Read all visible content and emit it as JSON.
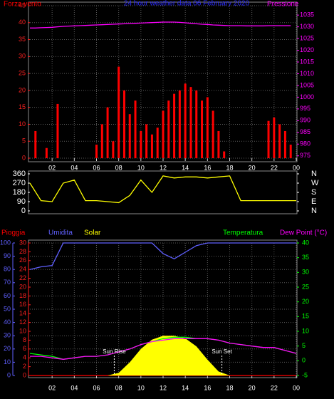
{
  "chart_data": [
    {
      "type": "bar",
      "title": "24 hour weather data  06 February 2020",
      "x": [
        0,
        0.5,
        1,
        1.5,
        2,
        2.5,
        3,
        3.5,
        4,
        4.5,
        5,
        5.5,
        6,
        6.5,
        7,
        7.5,
        8,
        8.5,
        9,
        9.5,
        10,
        10.5,
        11,
        11.5,
        12,
        12.5,
        13,
        13.5,
        14,
        14.5,
        15,
        15.5,
        16,
        16.5,
        17,
        17.5,
        18,
        18.5,
        19,
        19.5,
        20,
        20.5,
        21,
        21.5,
        22,
        22.5,
        23,
        23.5
      ],
      "xlim": [
        0,
        24
      ],
      "xticks": [
        {
          "value": 2,
          "label": "02"
        },
        {
          "value": 4,
          "label": "04"
        },
        {
          "value": 6,
          "label": "06"
        },
        {
          "value": 8,
          "label": "08"
        },
        {
          "value": 10,
          "label": "10"
        },
        12,
        14,
        16,
        18,
        20,
        22,
        {
          "value": 24,
          "label": "00"
        }
      ],
      "ylim": [
        0,
        45
      ],
      "yticks": [
        0,
        5,
        10,
        15,
        20,
        25,
        30,
        35,
        40,
        45
      ],
      "y2lim": [
        974,
        1039
      ],
      "y2ticks": [
        975,
        980,
        985,
        990,
        995,
        1000,
        1005,
        1010,
        1015,
        1020,
        1025,
        1030,
        1035
      ],
      "ycolor": "#ff2020",
      "y2color": "#ff00ff",
      "grid": true,
      "series": [
        {
          "name": "Forza vento",
          "color": "#ff0000",
          "type": "bar",
          "values": [
            0,
            8,
            0,
            3,
            0,
            16,
            0,
            0,
            0,
            0,
            0,
            0,
            4,
            10,
            15,
            5,
            27,
            20,
            13,
            17,
            8,
            10,
            7,
            9,
            14,
            17,
            19,
            20,
            22,
            21,
            20,
            17,
            18,
            14,
            8,
            2,
            0,
            0,
            0,
            0,
            0,
            0,
            0,
            11,
            12,
            10,
            8,
            4
          ]
        },
        {
          "name": "Pressione",
          "color": "#ff00ff",
          "type": "line",
          "axis": "y2",
          "values": [
            1029.5,
            1029.5,
            1029.6,
            1029.7,
            1029.8,
            1030,
            1030.2,
            1030.3,
            1030.4,
            1030.5,
            1030.6,
            1030.7,
            1030.8,
            1030.9,
            1031,
            1031.1,
            1031.2,
            1031.3,
            1031.4,
            1031.5,
            1031.6,
            1031.7,
            1031.8,
            1031.9,
            1032,
            1032,
            1032,
            1031.9,
            1031.7,
            1031.5,
            1031.3,
            1031.1,
            1031,
            1030.8,
            1030.7,
            1030.6,
            1030.5,
            1030.5,
            1030.5,
            1030.4,
            1030.4,
            1030.4,
            1030.4,
            1030.5,
            1030.5,
            1030.5,
            1030.5,
            1030.5
          ]
        }
      ]
    },
    {
      "type": "line",
      "x": [
        0,
        1,
        2,
        3,
        4,
        5,
        6,
        7,
        8,
        9,
        10,
        11,
        12,
        13,
        14,
        15,
        16,
        17,
        18,
        19,
        20,
        21,
        22,
        23,
        24
      ],
      "xlim": [
        0,
        24
      ],
      "ylim": [
        0,
        360
      ],
      "yticks": [
        0,
        90,
        180,
        270,
        360
      ],
      "y2lim": [
        0,
        360
      ],
      "y2ticks": [
        {
          "value": 0,
          "label": "N"
        },
        {
          "value": 90,
          "label": "E"
        },
        {
          "value": 180,
          "label": "S"
        },
        {
          "value": 270,
          "label": "W"
        },
        {
          "value": 360,
          "label": "N"
        }
      ],
      "ycolor": "#ffffff",
      "y2color": "#ffffff",
      "grid": false,
      "series": [
        {
          "color": "#ffff00",
          "type": "line",
          "values": [
            270,
            100,
            90,
            270,
            300,
            100,
            100,
            90,
            80,
            150,
            300,
            180,
            340,
            320,
            330,
            330,
            320,
            330,
            340,
            100,
            100,
            100,
            100,
            100,
            100
          ]
        }
      ]
    },
    {
      "type": "line",
      "x": [
        0,
        1,
        2,
        3,
        4,
        5,
        6,
        7,
        8,
        9,
        10,
        11,
        12,
        13,
        14,
        15,
        16,
        17,
        18,
        19,
        20,
        21,
        22,
        23,
        24
      ],
      "xlim": [
        0,
        24
      ],
      "xticks": [
        {
          "value": 2,
          "label": "02"
        },
        {
          "value": 4,
          "label": "04"
        },
        {
          "value": 6,
          "label": "06"
        },
        {
          "value": 8,
          "label": "08"
        },
        {
          "value": 10,
          "label": "10"
        },
        12,
        14,
        16,
        18,
        20,
        22,
        {
          "value": 24,
          "label": "00"
        }
      ],
      "ylim": [
        0,
        100
      ],
      "yticks": [
        0,
        10,
        20,
        30,
        40,
        50,
        60,
        70,
        80,
        90,
        100
      ],
      "y3lim": [
        0,
        30
      ],
      "y3ticks": [
        0,
        2,
        4,
        6,
        8,
        10,
        12,
        14,
        16,
        18,
        20,
        22,
        24,
        26,
        28,
        30
      ],
      "y2lim": [
        -5,
        40
      ],
      "y2ticks": [
        -5,
        0,
        5,
        10,
        15,
        20,
        25,
        30,
        35,
        40
      ],
      "ycolor": "#6060ff",
      "y3color": "#ff2020",
      "y2color": "#00ff00",
      "grid": true,
      "series": [
        {
          "name": "Pioggia",
          "color": "#ff0000",
          "type": "line",
          "axis": "y3",
          "values": [
            0,
            0,
            0,
            0,
            0,
            0,
            0,
            0,
            0,
            0,
            0,
            0,
            0,
            0,
            0,
            0,
            0,
            0,
            0,
            0,
            0,
            0,
            0,
            0,
            0
          ]
        },
        {
          "name": "Umidita",
          "color": "#6060ff",
          "type": "line",
          "values": [
            80,
            82,
            83,
            100,
            100,
            100,
            100,
            100,
            100,
            100,
            100,
            100,
            92,
            88,
            93,
            98,
            100,
            100,
            100,
            100,
            100,
            100,
            100,
            100,
            100
          ]
        },
        {
          "name": "Solar",
          "color": "#ffff00",
          "type": "area",
          "values": [
            0,
            0,
            0,
            0,
            0,
            0,
            0,
            0,
            2,
            10,
            20,
            27,
            30,
            30,
            28,
            22,
            12,
            3,
            0,
            0,
            0,
            0,
            0,
            0,
            0
          ]
        },
        {
          "name": "Temperatura",
          "color": "#00ff00",
          "type": "line",
          "axis": "y2",
          "values": [
            2.5,
            2,
            1.5,
            0.5,
            1,
            1.5,
            1.5,
            2,
            3,
            4,
            5.5,
            6.5,
            7.5,
            8,
            8,
            7.5,
            7.5,
            7,
            6,
            5.5,
            5,
            4.5,
            4.5,
            3.5,
            2.5
          ]
        },
        {
          "name": "Dew Point (°C)",
          "color": "#ff00ff",
          "type": "line",
          "axis": "y2",
          "values": [
            1.5,
            1.5,
            1,
            0.5,
            1,
            1.5,
            1.5,
            2,
            3,
            4,
            5.5,
            6.5,
            7,
            7.5,
            7.5,
            7.5,
            7.5,
            7,
            6,
            5.5,
            5,
            4.5,
            4.5,
            3.5,
            2.5
          ]
        }
      ],
      "annotations": [
        {
          "text": "Sun Rise",
          "x": 7.6
        },
        {
          "text": "Sun Set",
          "x": 17.3
        }
      ]
    }
  ]
}
